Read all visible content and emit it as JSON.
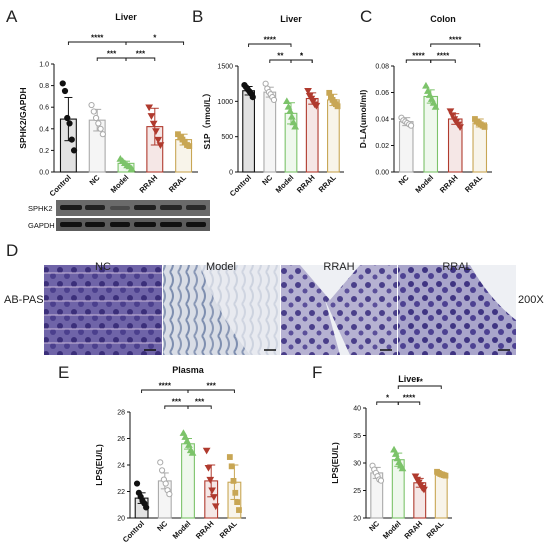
{
  "figure": {
    "panels": {
      "A": "A",
      "B": "B",
      "C": "C",
      "D": "D",
      "E": "E",
      "F": "F"
    },
    "western_blot": {
      "rows": [
        "SPHK2",
        "GAPDH"
      ]
    },
    "histology": {
      "side_label": "AB-PAS",
      "magnification": "200X",
      "groups": [
        "NC",
        "Model",
        "RRAH",
        "RRAL"
      ]
    }
  },
  "colors": {
    "Control": "#111111",
    "NC": "#aaaaaa",
    "Model": "#7cc36a",
    "RRAH": "#b03a2e",
    "RRAL": "#c8a654"
  },
  "chart_data": [
    {
      "id": "A",
      "type": "bar",
      "title": "Liver",
      "ylabel": "SPHK2/GAPDH",
      "ylim": [
        0,
        1.0
      ],
      "yticks": [
        "0.0",
        "0.2",
        "0.4",
        "0.6",
        "0.8",
        "1.0"
      ],
      "categories": [
        "Control",
        "NC",
        "Model",
        "RRAH",
        "RRAL"
      ],
      "values": [
        0.49,
        0.48,
        0.08,
        0.42,
        0.3
      ],
      "errors": [
        0.2,
        0.1,
        0.02,
        0.17,
        0.05
      ],
      "points": [
        [
          0.82,
          0.75,
          0.5,
          0.45,
          0.3,
          0.2
        ],
        [
          0.62,
          0.56,
          0.5,
          0.45,
          0.4,
          0.35
        ],
        [
          0.12,
          0.1,
          0.08,
          0.06,
          0.05,
          0.03
        ],
        [
          0.6,
          0.52,
          0.45,
          0.38,
          0.3,
          0.25
        ],
        [
          0.35,
          0.32,
          0.3,
          0.28,
          0.25,
          0.24
        ]
      ],
      "comparisons": [
        {
          "from": "Control",
          "to": "Model",
          "label": "****"
        },
        {
          "from": "Model",
          "to": "RRAL",
          "label": "*"
        },
        {
          "from": "NC",
          "to": "Model",
          "label": "***"
        },
        {
          "from": "Model",
          "to": "RRAH",
          "label": "***"
        }
      ]
    },
    {
      "id": "B",
      "type": "bar",
      "title": "Liver",
      "ylabel": "S1P（nmol/L）",
      "ylim": [
        0,
        1500
      ],
      "yticks": [
        "0",
        "500",
        "1000",
        "1500"
      ],
      "categories": [
        "Control",
        "NC",
        "Model",
        "RRAH",
        "RRAL"
      ],
      "values": [
        1150,
        1130,
        830,
        1040,
        1020
      ],
      "errors": [
        60,
        70,
        150,
        80,
        80
      ],
      "points": [
        [
          1230,
          1200,
          1170,
          1140,
          1110,
          1060
        ],
        [
          1250,
          1180,
          1130,
          1100,
          1060,
          1020
        ],
        [
          1000,
          920,
          860,
          780,
          700,
          640
        ],
        [
          1150,
          1080,
          1040,
          1000,
          960,
          940
        ],
        [
          1120,
          1060,
          1020,
          990,
          960,
          930
        ]
      ],
      "comparisons": [
        {
          "from": "Control",
          "to": "Model",
          "label": "****"
        },
        {
          "from": "NC",
          "to": "Model",
          "label": "**"
        },
        {
          "from": "Model",
          "to": "RRAH",
          "label": "*"
        },
        {
          "from": "Model",
          "to": "RRAH",
          "label": "*"
        }
      ]
    },
    {
      "id": "C",
      "type": "bar",
      "title": "Colon",
      "ylabel": "D-LA(umol/ml)",
      "ylim": [
        0,
        0.08
      ],
      "yticks": [
        "0.00",
        "0.02",
        "0.04",
        "0.06",
        "0.08"
      ],
      "categories": [
        "NC",
        "Model",
        "RRAH",
        "RRAL"
      ],
      "values": [
        0.038,
        0.057,
        0.04,
        0.037
      ],
      "errors": [
        0.003,
        0.005,
        0.004,
        0.003
      ],
      "points": [
        [
          0.041,
          0.039,
          0.038,
          0.037,
          0.036,
          0.035
        ],
        [
          0.065,
          0.061,
          0.058,
          0.055,
          0.052,
          0.049
        ],
        [
          0.046,
          0.043,
          0.04,
          0.038,
          0.036,
          0.034
        ],
        [
          0.04,
          0.038,
          0.037,
          0.036,
          0.035,
          0.034
        ]
      ],
      "comparisons": [
        {
          "from": "NC",
          "to": "Model",
          "label": "****"
        },
        {
          "from": "Model",
          "to": "RRAH",
          "label": "****"
        },
        {
          "from": "Model",
          "to": "RRAL",
          "label": "****"
        }
      ]
    },
    {
      "id": "E",
      "type": "bar",
      "title": "Plasma",
      "ylabel": "LPS(EU/L)",
      "ylim": [
        20,
        28
      ],
      "yticks": [
        "20",
        "22",
        "24",
        "26",
        "28"
      ],
      "categories": [
        "Control",
        "NC",
        "Model",
        "RRAH",
        "RRAL"
      ],
      "values": [
        21.5,
        22.8,
        25.6,
        22.8,
        22.7
      ],
      "errors": [
        0.4,
        0.6,
        0.4,
        1.2,
        1.3
      ],
      "points": [
        [
          22.6,
          21.9,
          21.6,
          21.3,
          21.1,
          20.8
        ],
        [
          24.2,
          23.6,
          22.9,
          22.6,
          22.1,
          21.8
        ],
        [
          26.4,
          26.1,
          25.8,
          25.5,
          25.1,
          24.9
        ],
        [
          25.1,
          23.8,
          22.9,
          22.1,
          21.6,
          20.9
        ],
        [
          24.6,
          23.9,
          22.8,
          21.9,
          21.2,
          20.6
        ]
      ],
      "comparisons": [
        {
          "from": "Control",
          "to": "Model",
          "label": "****"
        },
        {
          "from": "Model",
          "to": "RRAL",
          "label": "***"
        },
        {
          "from": "NC",
          "to": "Model",
          "label": "***"
        },
        {
          "from": "Model",
          "to": "RRAH",
          "label": "***"
        }
      ]
    },
    {
      "id": "F",
      "type": "bar",
      "title": "Liver",
      "ylabel": "LPS(EU/L)",
      "ylim": [
        20,
        40
      ],
      "yticks": [
        "20",
        "25",
        "30",
        "35",
        "40"
      ],
      "categories": [
        "NC",
        "Model",
        "RRAH",
        "RRAL"
      ],
      "values": [
        28.2,
        30.6,
        26.4,
        28.0
      ],
      "errors": [
        1.0,
        1.2,
        0.8,
        0.3
      ],
      "points": [
        [
          29.5,
          28.8,
          28.2,
          27.6,
          27.0,
          26.8
        ],
        [
          32.4,
          31.6,
          30.8,
          30.1,
          29.5,
          29.0
        ],
        [
          27.6,
          27.0,
          26.5,
          26.0,
          25.5,
          25.2
        ],
        [
          28.4,
          28.2,
          28.0,
          27.9,
          27.8,
          27.7
        ]
      ],
      "comparisons": [
        {
          "from": "NC",
          "to": "Model",
          "label": "*"
        },
        {
          "from": "Model",
          "to": "RRAH",
          "label": "****"
        },
        {
          "from": "Model",
          "to": "RRAL",
          "label": "**"
        }
      ]
    }
  ]
}
